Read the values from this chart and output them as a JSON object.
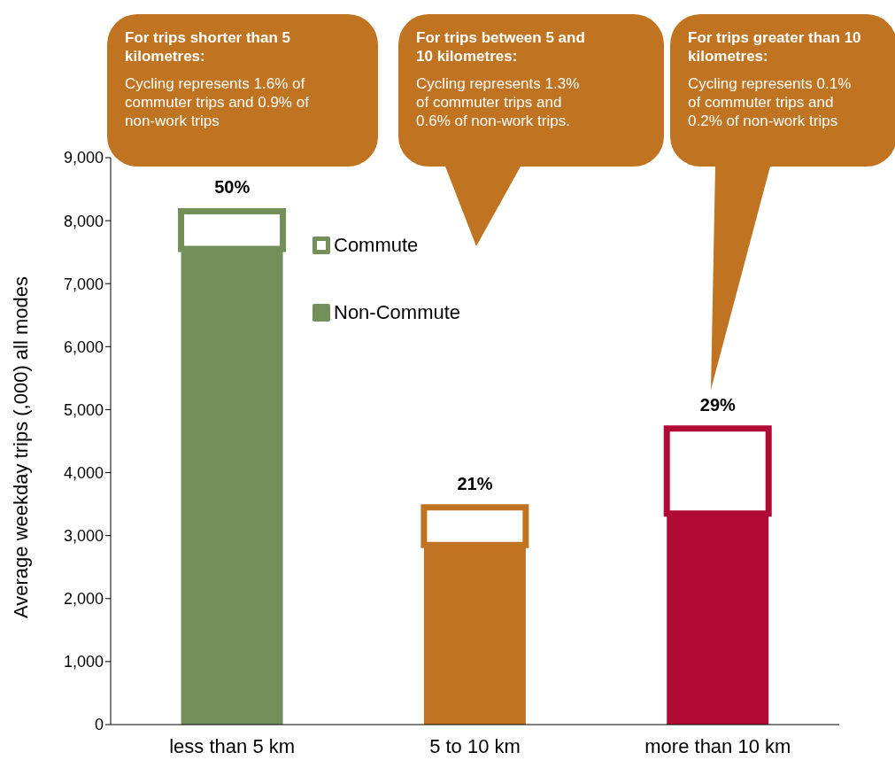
{
  "chart_data": {
    "type": "bar",
    "stacked": true,
    "categories": [
      "less than 5 km",
      "5 to 10 km",
      "more than 10 km"
    ],
    "ylabel": "Average weekday trips (,000) all modes",
    "ylim": [
      0,
      9000
    ],
    "yticks": [
      0,
      {
        "value": 1000,
        "label": "1,000"
      },
      {
        "value": 2000,
        "label": "2,000"
      },
      {
        "value": 3000,
        "label": "3,000"
      },
      {
        "value": 4000,
        "label": "4,000"
      },
      {
        "value": 5000,
        "label": "5,000"
      },
      {
        "value": 6000,
        "label": "6,000"
      },
      {
        "value": 7000,
        "label": "7,000"
      },
      {
        "value": 8000,
        "label": "8,000"
      },
      {
        "value": 9000,
        "label": "9,000"
      }
    ],
    "grid": false,
    "legend": "top",
    "series": [
      {
        "name": "Non-Commute",
        "colors": [
          "#738f5a",
          "#c07320",
          "#b00a35"
        ],
        "values": [
          7550,
          2850,
          3350
        ]
      },
      {
        "name": "Commute",
        "colors": [
          "#738f5a",
          "#c07320",
          "#b00a35"
        ],
        "values": [
          600,
          600,
          1350
        ]
      }
    ],
    "annotations": [
      {
        "text": "50%",
        "x": "less than 5 km",
        "y": 8150
      },
      {
        "text": "21%",
        "x": "5 to 10 km",
        "y": 3450
      },
      {
        "text": "29%",
        "x": "more than 10 km",
        "y": 4700
      },
      "For trips shorter than 5 kilometres:",
      "Cycling represents 1.6% of commuter trips and 0.9% of non-work trips",
      "For trips between 5 and 10 kilometres:",
      "Cycling represents 1.3% of commuter trips and 0.6% of non-work trips.",
      "For trips greater than 10 kilometres:",
      "Cycling represents 0.1% of commuter trips and 0.2% of non-work trips"
    ]
  }
}
